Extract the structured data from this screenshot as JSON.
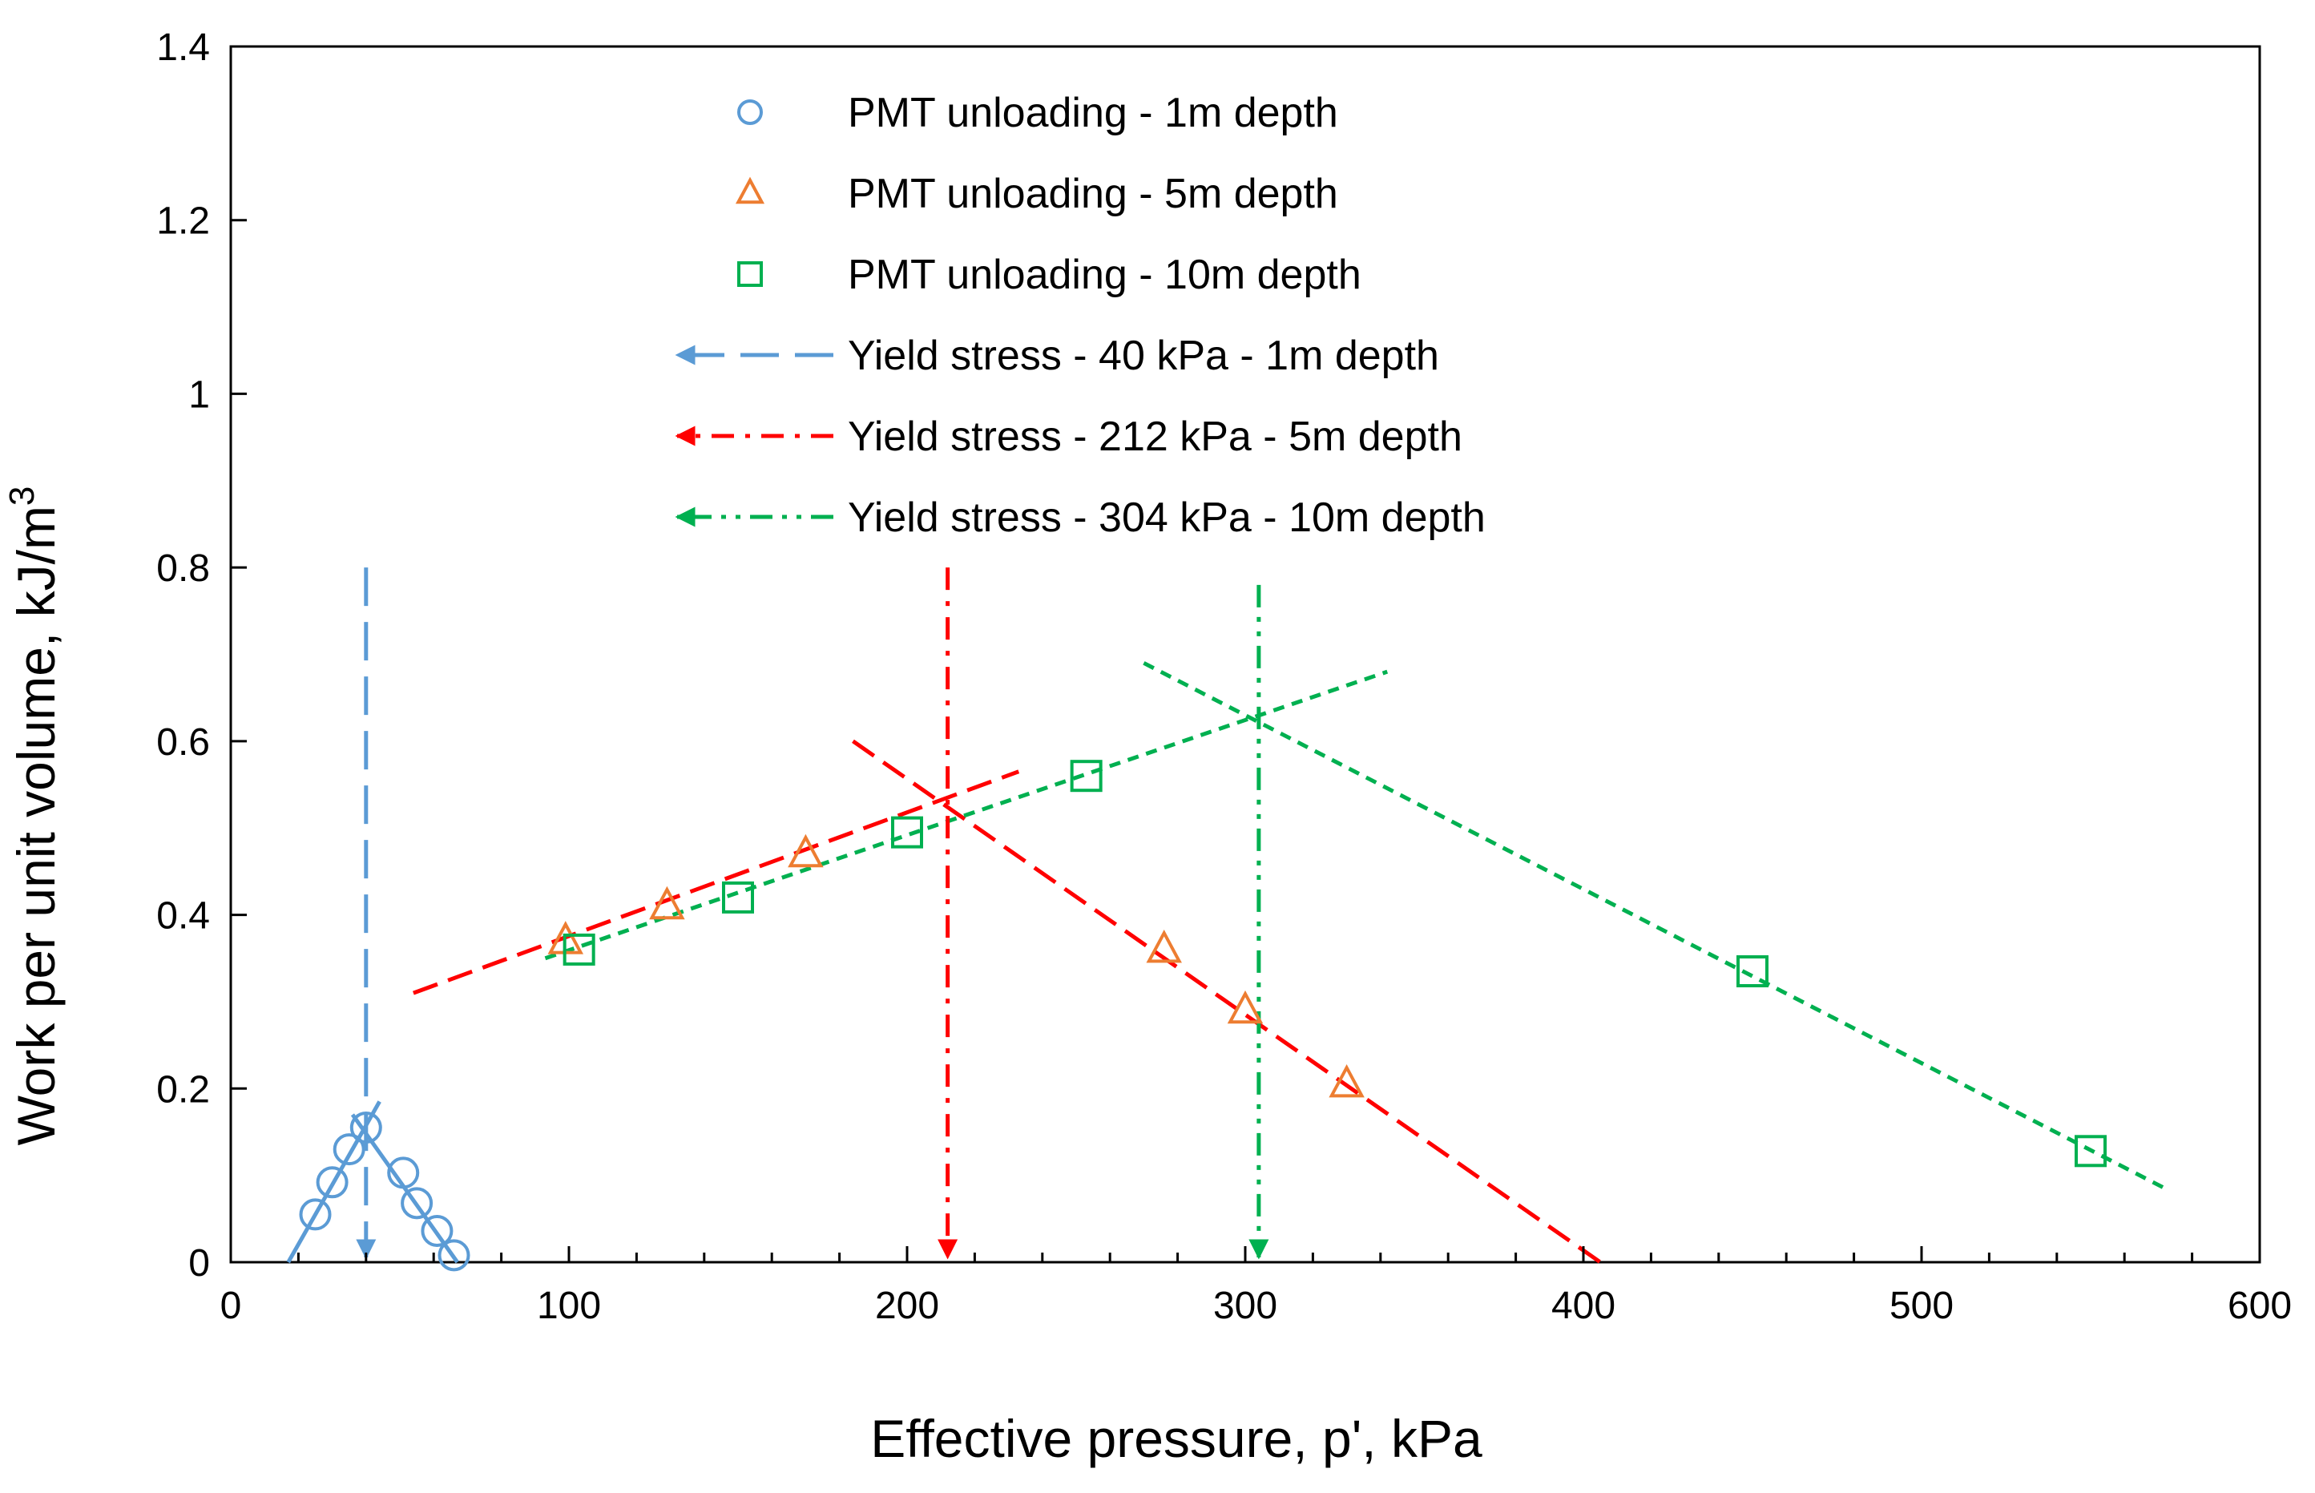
{
  "chart_data": {
    "type": "scatter",
    "title": "",
    "xlabel": "Effective pressure, p', kPa",
    "ylabel_main": "Work per unit volume, kJ/m",
    "ylabel_sup": "3",
    "xlim": [
      0,
      600
    ],
    "ylim": [
      0,
      1.4
    ],
    "x_ticks": [
      "0",
      "100",
      "200",
      "300",
      "400",
      "500",
      "600"
    ],
    "y_ticks": [
      "0",
      "0.2",
      "0.4",
      "0.6",
      "0.8",
      "1",
      "1.2",
      "1.4"
    ],
    "grid": false,
    "legend_position": "top-center",
    "colors": {
      "blue": "#5b9bd5",
      "orange": "#ed7d31",
      "green": "#00b050",
      "red": "#ff0000"
    },
    "series": [
      {
        "name": "PMT unloading - 1m depth",
        "marker": "circle",
        "color": "#5b9bd5",
        "x": [
          25,
          30,
          35,
          40,
          51,
          55,
          61,
          66
        ],
        "y": [
          0.055,
          0.092,
          0.13,
          0.155,
          0.103,
          0.068,
          0.036,
          0.008
        ]
      },
      {
        "name": "PMT unloading - 5m depth",
        "marker": "triangle",
        "color": "#ed7d31",
        "x": [
          99,
          129,
          170,
          276,
          300,
          330
        ],
        "y": [
          0.37,
          0.41,
          0.47,
          0.36,
          0.29,
          0.205
        ]
      },
      {
        "name": "PMT unloading - 10m depth",
        "marker": "square",
        "color": "#00b050",
        "x": [
          103,
          150,
          200,
          253,
          450,
          550
        ],
        "y": [
          0.36,
          0.42,
          0.495,
          0.56,
          0.335,
          0.128
        ]
      }
    ],
    "trend_lines": [
      {
        "name": "1m-loading",
        "color": "#5b9bd5",
        "dash": "solid",
        "x": [
          17,
          44
        ],
        "y": [
          0.0,
          0.185
        ]
      },
      {
        "name": "1m-unloading",
        "color": "#5b9bd5",
        "dash": "solid",
        "x": [
          36,
          67
        ],
        "y": [
          0.17,
          0.0
        ]
      },
      {
        "name": "5m-loading",
        "color": "#ff0000",
        "dash": "dashed",
        "x": [
          54,
          233
        ],
        "y": [
          0.31,
          0.565
        ]
      },
      {
        "name": "5m-unloading",
        "color": "#ff0000",
        "dash": "dashed",
        "x": [
          184,
          405
        ],
        "y": [
          0.6,
          0.0
        ]
      },
      {
        "name": "10m-loading",
        "color": "#00b050",
        "dash": "dotted",
        "x": [
          93,
          342
        ],
        "y": [
          0.35,
          0.68
        ]
      },
      {
        "name": "10m-unloading",
        "color": "#00b050",
        "dash": "dotted",
        "x": [
          270,
          572
        ],
        "y": [
          0.69,
          0.085
        ]
      }
    ],
    "yield_lines": [
      {
        "name": "Yield stress - 40 kPa - 1m depth",
        "x": 40,
        "y_top": 0.8,
        "color": "#5b9bd5",
        "dash": "longdash"
      },
      {
        "name": "Yield stress - 212 kPa - 5m depth",
        "x": 212,
        "y_top": 0.8,
        "color": "#ff0000",
        "dash": "dashdot"
      },
      {
        "name": "Yield stress - 304 kPa - 10m depth",
        "x": 304,
        "y_top": 0.78,
        "color": "#00b050",
        "dash": "dashdotdot"
      }
    ],
    "legend": [
      {
        "label": "PMT unloading - 1m depth",
        "symbol": "circle",
        "color": "#5b9bd5"
      },
      {
        "label": "PMT unloading - 5m depth",
        "symbol": "triangle",
        "color": "#ed7d31"
      },
      {
        "label": "PMT unloading - 10m depth",
        "symbol": "square",
        "color": "#00b050"
      },
      {
        "label": "Yield stress - 40 kPa - 1m depth",
        "symbol": "arrow-longdash",
        "color": "#5b9bd5"
      },
      {
        "label": "Yield stress - 212 kPa - 5m depth",
        "symbol": "arrow-dashdot",
        "color": "#ff0000"
      },
      {
        "label": "Yield stress - 304 kPa - 10m depth",
        "symbol": "arrow-dashdotdot",
        "color": "#00b050"
      }
    ]
  }
}
